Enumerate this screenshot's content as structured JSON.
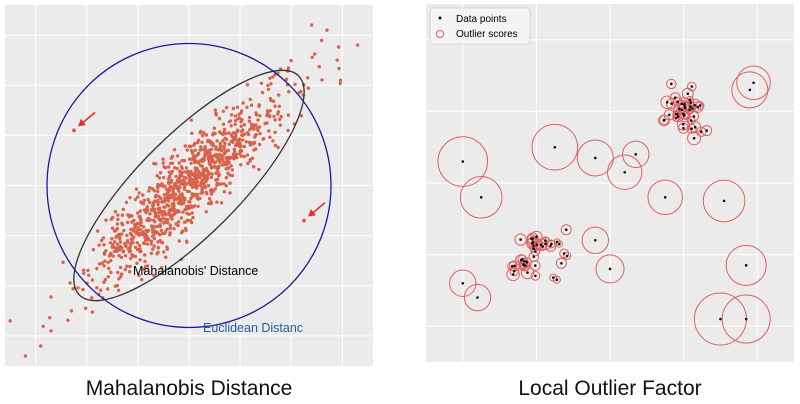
{
  "captions": {
    "left": "Mahalanobis Distance",
    "right": "Local Outlier Factor"
  },
  "chart_data": [
    {
      "type": "scatter",
      "title": "",
      "xlabel": "",
      "ylabel": "",
      "xlim": [
        -3.6,
        3.6
      ],
      "ylim": [
        -3.6,
        3.6
      ],
      "grid": true,
      "background": "#ebebeb",
      "point_color": "#d9624b",
      "annotations": {
        "mahalanobis_label": "Mahalanobis' Distance",
        "euclidean_label": "Euclidean Distanc"
      },
      "colors": {
        "mahalanobis_ellipse": "#333333",
        "euclidean_circle": "#1a1a9a",
        "euclidean_label": "#1f5fa0",
        "arrow": "#e03030"
      },
      "marked_outliers": [
        {
          "x": -2.25,
          "y": 1.1
        },
        {
          "x": 2.25,
          "y": -0.7
        }
      ],
      "series": [
        {
          "name": "",
          "correlation": 0.9,
          "n_points": 1000,
          "sample_points": [
            {
              "x": -2.9,
              "y": -3.2
            },
            {
              "x": -3.2,
              "y": -3.4
            },
            {
              "x": -3.5,
              "y": -2.7
            },
            {
              "x": -2.7,
              "y": -2.9
            },
            {
              "x": -2.3,
              "y": -2.5
            },
            {
              "x": 2.4,
              "y": 3.2
            },
            {
              "x": 2.7,
              "y": 3.1
            },
            {
              "x": 3.3,
              "y": 2.8
            },
            {
              "x": 2.9,
              "y": 2.5
            },
            {
              "x": 1.3,
              "y": 1.0
            },
            {
              "x": -1.2,
              "y": -1.1
            },
            {
              "x": 0.1,
              "y": 0.2
            }
          ]
        }
      ]
    },
    {
      "type": "scatter",
      "title": "",
      "xlabel": "",
      "ylabel": "",
      "xlim": [
        -5,
        5
      ],
      "ylim": [
        -5,
        5
      ],
      "grid": true,
      "background": "#ebebeb",
      "legend_position": "top-left",
      "colors": {
        "points": "#111111",
        "outlier_circle": "#e06060"
      },
      "legend": [
        {
          "label": "Data points",
          "marker": "dot"
        },
        {
          "label": "Outlier scores",
          "marker": "circle"
        }
      ],
      "clusters": [
        {
          "center_x": -2.0,
          "center_y": -2.0,
          "spread": 0.35,
          "n_points": 40
        },
        {
          "center_x": 2.0,
          "center_y": 2.0,
          "spread": 0.35,
          "n_points": 40
        }
      ],
      "outliers": [
        {
          "x": -4.0,
          "y": 0.6,
          "score": 0.62
        },
        {
          "x": -3.5,
          "y": -0.4,
          "score": 0.52
        },
        {
          "x": -1.5,
          "y": 1.0,
          "score": 0.57
        },
        {
          "x": -0.4,
          "y": 0.7,
          "score": 0.45
        },
        {
          "x": 0.7,
          "y": 0.8,
          "score": 0.33
        },
        {
          "x": 0.4,
          "y": 0.3,
          "score": 0.43
        },
        {
          "x": -0.4,
          "y": -1.6,
          "score": 0.33
        },
        {
          "x": 0.0,
          "y": -2.4,
          "score": 0.35
        },
        {
          "x": 1.5,
          "y": -0.4,
          "score": 0.43
        },
        {
          "x": 3.1,
          "y": -0.5,
          "score": 0.52
        },
        {
          "x": 3.9,
          "y": 2.8,
          "score": 0.42
        },
        {
          "x": 3.8,
          "y": 2.6,
          "score": 0.45
        },
        {
          "x": 3.7,
          "y": -2.3,
          "score": 0.5
        },
        {
          "x": 3.0,
          "y": -3.8,
          "score": 0.65
        },
        {
          "x": 3.7,
          "y": -3.8,
          "score": 0.6
        },
        {
          "x": -4.0,
          "y": -2.8,
          "score": 0.33
        },
        {
          "x": -3.6,
          "y": -3.2,
          "score": 0.33
        }
      ]
    }
  ]
}
